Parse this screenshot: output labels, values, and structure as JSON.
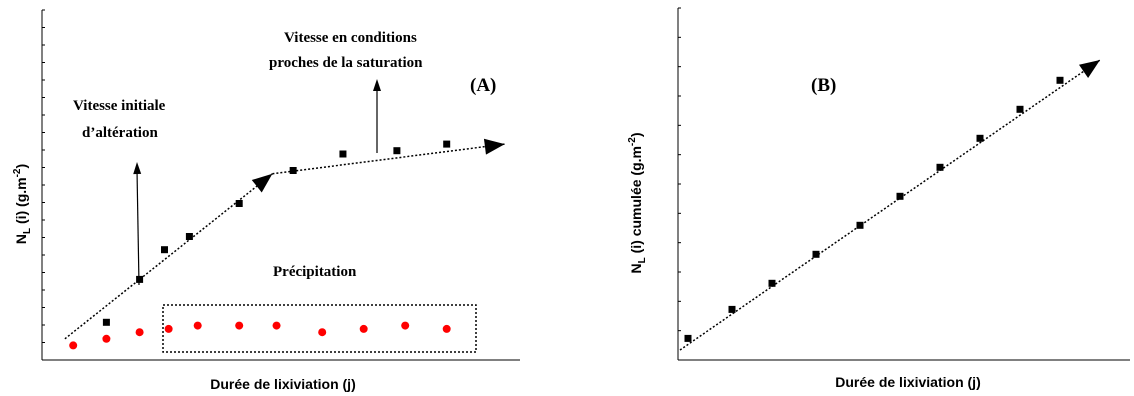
{
  "chart_data": [
    {
      "type": "scatter",
      "panel_label": "(A)",
      "title": "",
      "xlabel": "Durée de lixiviation (j)",
      "ylabel_main": "N",
      "ylabel_sub": "L",
      "ylabel_rest": " (i) (g.m",
      "ylabel_sup": "-2",
      "ylabel_end": ")",
      "xlim": [
        0,
        10
      ],
      "ylim": [
        0,
        10
      ],
      "series": [
        {
          "marker": "square",
          "color": "#000000",
          "x": [
            1.6,
            2.4,
            3.0,
            3.6,
            4.8,
            6.1,
            7.3,
            8.6,
            9.8
          ],
          "y": [
            0.9,
            2.2,
            3.1,
            3.5,
            4.5,
            5.5,
            6.0,
            6.1,
            6.3
          ]
        },
        {
          "marker": "circle",
          "color": "#ff0000",
          "x": [
            0.8,
            1.6,
            2.4,
            3.1,
            3.8,
            4.8,
            5.7,
            6.8,
            7.8,
            8.8,
            9.8
          ],
          "y": [
            0.2,
            0.4,
            0.6,
            0.7,
            0.8,
            0.8,
            0.8,
            0.6,
            0.7,
            0.8,
            0.7
          ]
        }
      ],
      "annotations": {
        "initial_line1": "Vitesse initiale",
        "initial_line2": "d’altération",
        "saturation_line1": "Vitesse en conditions",
        "saturation_line2": "proches de la saturation",
        "precipitation": "Précipitation"
      },
      "trend_segments": [
        {
          "from": [
            0.6,
            0.4
          ],
          "to": [
            5.6,
            5.4
          ]
        },
        {
          "from": [
            5.6,
            5.4
          ],
          "to": [
            11.2,
            6.3
          ]
        }
      ]
    },
    {
      "type": "scatter",
      "panel_label": "(B)",
      "title": "",
      "xlabel": "Durée de lixiviation (j)",
      "ylabel_main": "N",
      "ylabel_sub": "L",
      "ylabel_rest": " (i) cumulée (g.m",
      "ylabel_sup": "-2",
      "ylabel_end": ")",
      "xlim": [
        0,
        10
      ],
      "ylim": [
        0,
        10
      ],
      "series": [
        {
          "marker": "square",
          "color": "#000000",
          "x": [
            0.2,
            1.3,
            2.3,
            3.4,
            4.5,
            5.5,
            6.5,
            7.5,
            8.5,
            9.5
          ],
          "y": [
            0.4,
            1.4,
            2.3,
            3.3,
            4.3,
            5.3,
            6.3,
            7.3,
            8.3,
            9.3
          ]
        }
      ],
      "trend_segments": [
        {
          "from": [
            0.0,
            0.0
          ],
          "to": [
            10.5,
            10.0
          ]
        }
      ]
    }
  ]
}
